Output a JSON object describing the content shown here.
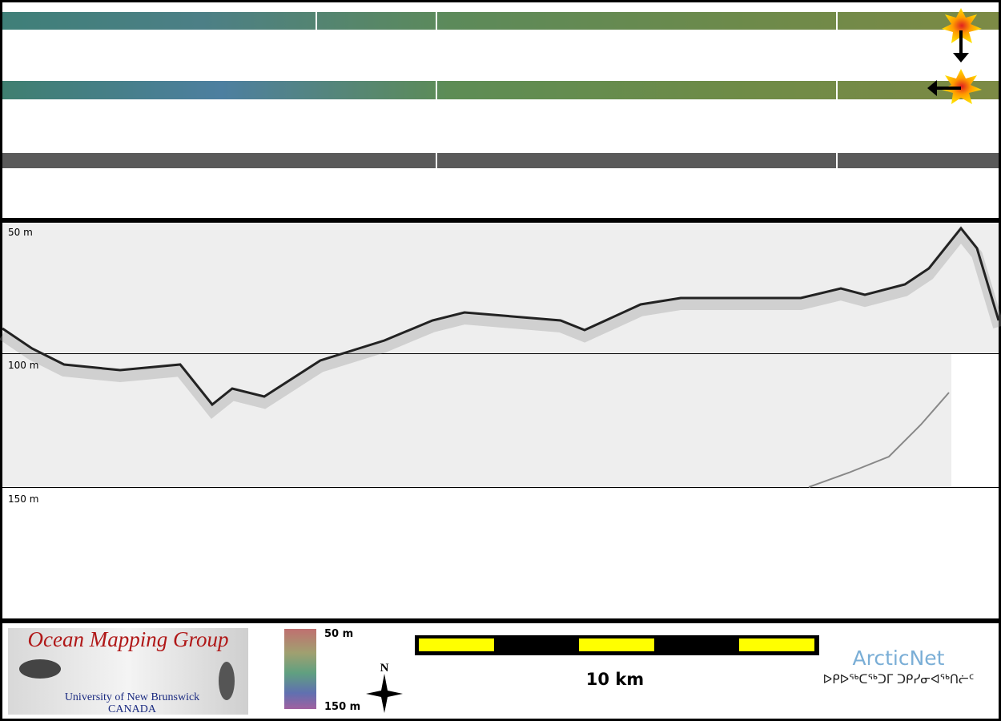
{
  "profile": {
    "depth_labels": [
      "50 m",
      "100 m",
      "150 m"
    ]
  },
  "footer": {
    "logo": {
      "title": "Ocean Mapping Group",
      "institution": "University of New Brunswick",
      "country": "CANADA"
    },
    "color_scale": {
      "top": "50 m",
      "bottom": "150 m"
    },
    "compass": "N",
    "scale_bar": "10 km",
    "partner": {
      "name": "ArcticNet",
      "inuktitut": "ᐅᑭᐅᖅᑕᖅᑐᒥ ᑐᑭᓯᓂᐊᖅᑎᓖᑦ"
    }
  }
}
